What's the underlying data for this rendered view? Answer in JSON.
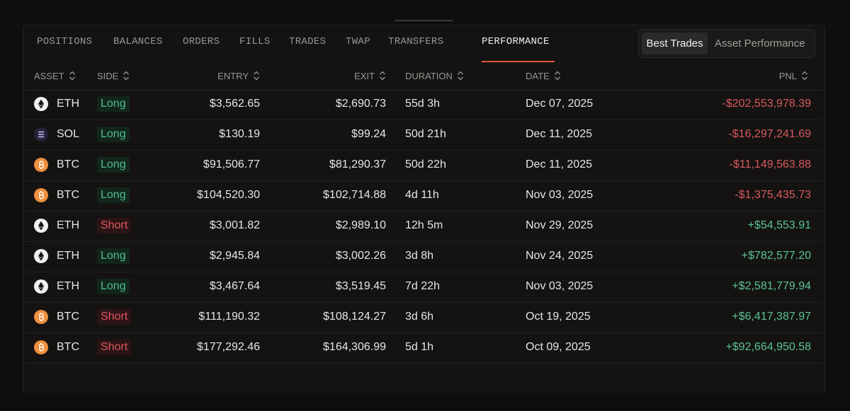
{
  "tabs": [
    "POSITIONS",
    "BALANCES",
    "ORDERS",
    "FILLS",
    "TRADES",
    "TWAP",
    "TRANSFERS",
    "PERFORMANCE"
  ],
  "toggle": [
    "Best Trades",
    "Asset Performance"
  ],
  "table": {
    "headers": [
      "ASSET",
      "SIDE",
      "ENTRY",
      "EXIT",
      "DURATION",
      "DATE",
      "PNL"
    ],
    "rows": [
      [
        "ETH",
        "Long",
        "$3,562.65",
        "$2,690.73",
        "55d 3h",
        "Dec 07, 2025",
        "-$202,553,978.39"
      ],
      [
        "SOL",
        "Long",
        "$130.19",
        "$99.24",
        "50d 21h",
        "Dec 11, 2025",
        "-$16,297,241.69"
      ],
      [
        "BTC",
        "Long",
        "$91,506.77",
        "$81,290.37",
        "50d 22h",
        "Dec 11, 2025",
        "-$11,149,563.88"
      ],
      [
        "BTC",
        "Long",
        "$104,520.30",
        "$102,714.88",
        "4d 11h",
        "Nov 03, 2025",
        "-$1,375,435.73"
      ],
      [
        "ETH",
        "Short",
        "$3,001.82",
        "$2,989.10",
        "12h 5m",
        "Nov 29, 2025",
        "+$54,553.91"
      ],
      [
        "ETH",
        "Long",
        "$2,945.84",
        "$3,002.26",
        "3d 8h",
        "Nov 24, 2025",
        "+$782,577.20"
      ],
      [
        "ETH",
        "Long",
        "$3,467.64",
        "$3,519.45",
        "7d 22h",
        "Nov 03, 2025",
        "+$2,581,779.94"
      ],
      [
        "BTC",
        "Short",
        "$111,190.32",
        "$108,124.27",
        "3d 6h",
        "Oct 19, 2025",
        "+$6,417,387.97"
      ],
      [
        "BTC",
        "Short",
        "$177,292.46",
        "$164,306.99",
        "5d 1h",
        "Oct 09, 2025",
        "+$92,664,950.58"
      ]
    ]
  }
}
